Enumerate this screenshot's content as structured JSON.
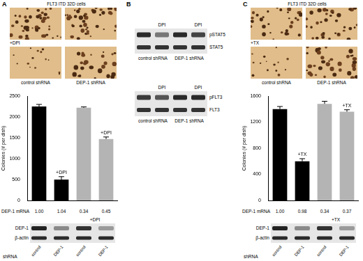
{
  "chart_data": [
    {
      "type": "bar",
      "ylabel": "Colonies (# per dish)",
      "categories": [
        null,
        null,
        null,
        null
      ],
      "values": [
        2250,
        500,
        2220,
        1470
      ],
      "errors": [
        50,
        70,
        20,
        50
      ],
      "colors": [
        "#000000",
        "#000000",
        "#b4b4b4",
        "#b4b4b4"
      ],
      "annotations": [
        null,
        "+DPI",
        null,
        "+DPI"
      ],
      "ylim": [
        0,
        2500
      ],
      "yticks": [
        0,
        500,
        1000,
        1500,
        2000,
        2500
      ],
      "grid": false,
      "mrna_label": "DEP-1 mRNA",
      "mrna": [
        "1.00",
        "1.04",
        "0.34",
        "0.45"
      ]
    },
    {
      "type": "bar",
      "ylabel": "Colonies (# per dish)",
      "categories": [
        null,
        null,
        null,
        null
      ],
      "values": [
        1400,
        600,
        1480,
        1360
      ],
      "errors": [
        40,
        40,
        40,
        30
      ],
      "colors": [
        "#000000",
        "#000000",
        "#b4b4b4",
        "#b4b4b4"
      ],
      "annotations": [
        null,
        "+TX",
        null,
        "+TX"
      ],
      "ylim": [
        0,
        1600
      ],
      "yticks": [
        0,
        400,
        800,
        1200,
        1600
      ],
      "grid": false,
      "mrna_label": "DEP-1 mRNA",
      "mrna": [
        "1.00",
        "0.98",
        "0.34",
        "0.37"
      ]
    }
  ],
  "panels": [
    {
      "letter": "A",
      "header": "FLT3 ITD 32D cells",
      "photo_row_label": "+DPI",
      "photo_columns": [
        "control shRNA",
        "DEP-1 shRNA"
      ],
      "blot": {
        "rows": [
          "DEP-1",
          "β-actin"
        ],
        "treatment": "+DPI",
        "lanes": [
          "control",
          "DEP-1",
          "control",
          "DEP-1"
        ],
        "lane_title": "shRNA"
      }
    },
    {
      "letter": "B",
      "blots": [
        {
          "rows": [
            "pSTAT5",
            "STAT5"
          ],
          "lane_marks": [
            null,
            "DPI",
            null,
            "DPI"
          ],
          "groups": [
            "control shRNA",
            "DEP-1 shRNA"
          ]
        },
        {
          "rows": [
            "pFLT3",
            "FLT3"
          ],
          "lane_marks": [
            null,
            "DPI",
            null,
            "DPI"
          ],
          "groups": [
            "control shRNA",
            "DEP-1 shRNA"
          ]
        }
      ]
    },
    {
      "letter": "C",
      "header": "FLT3 ITD 32D cells",
      "photo_row_label": "+TX",
      "photo_columns": [
        "control shRNA",
        "DEP-1 shRNA"
      ],
      "blot": {
        "rows": [
          "DEP-1",
          "β-actin"
        ],
        "treatment": "+TX",
        "lanes": [
          "control",
          "DEP-1",
          "control",
          "DEP-1"
        ],
        "lane_title": "shRNA"
      }
    }
  ]
}
